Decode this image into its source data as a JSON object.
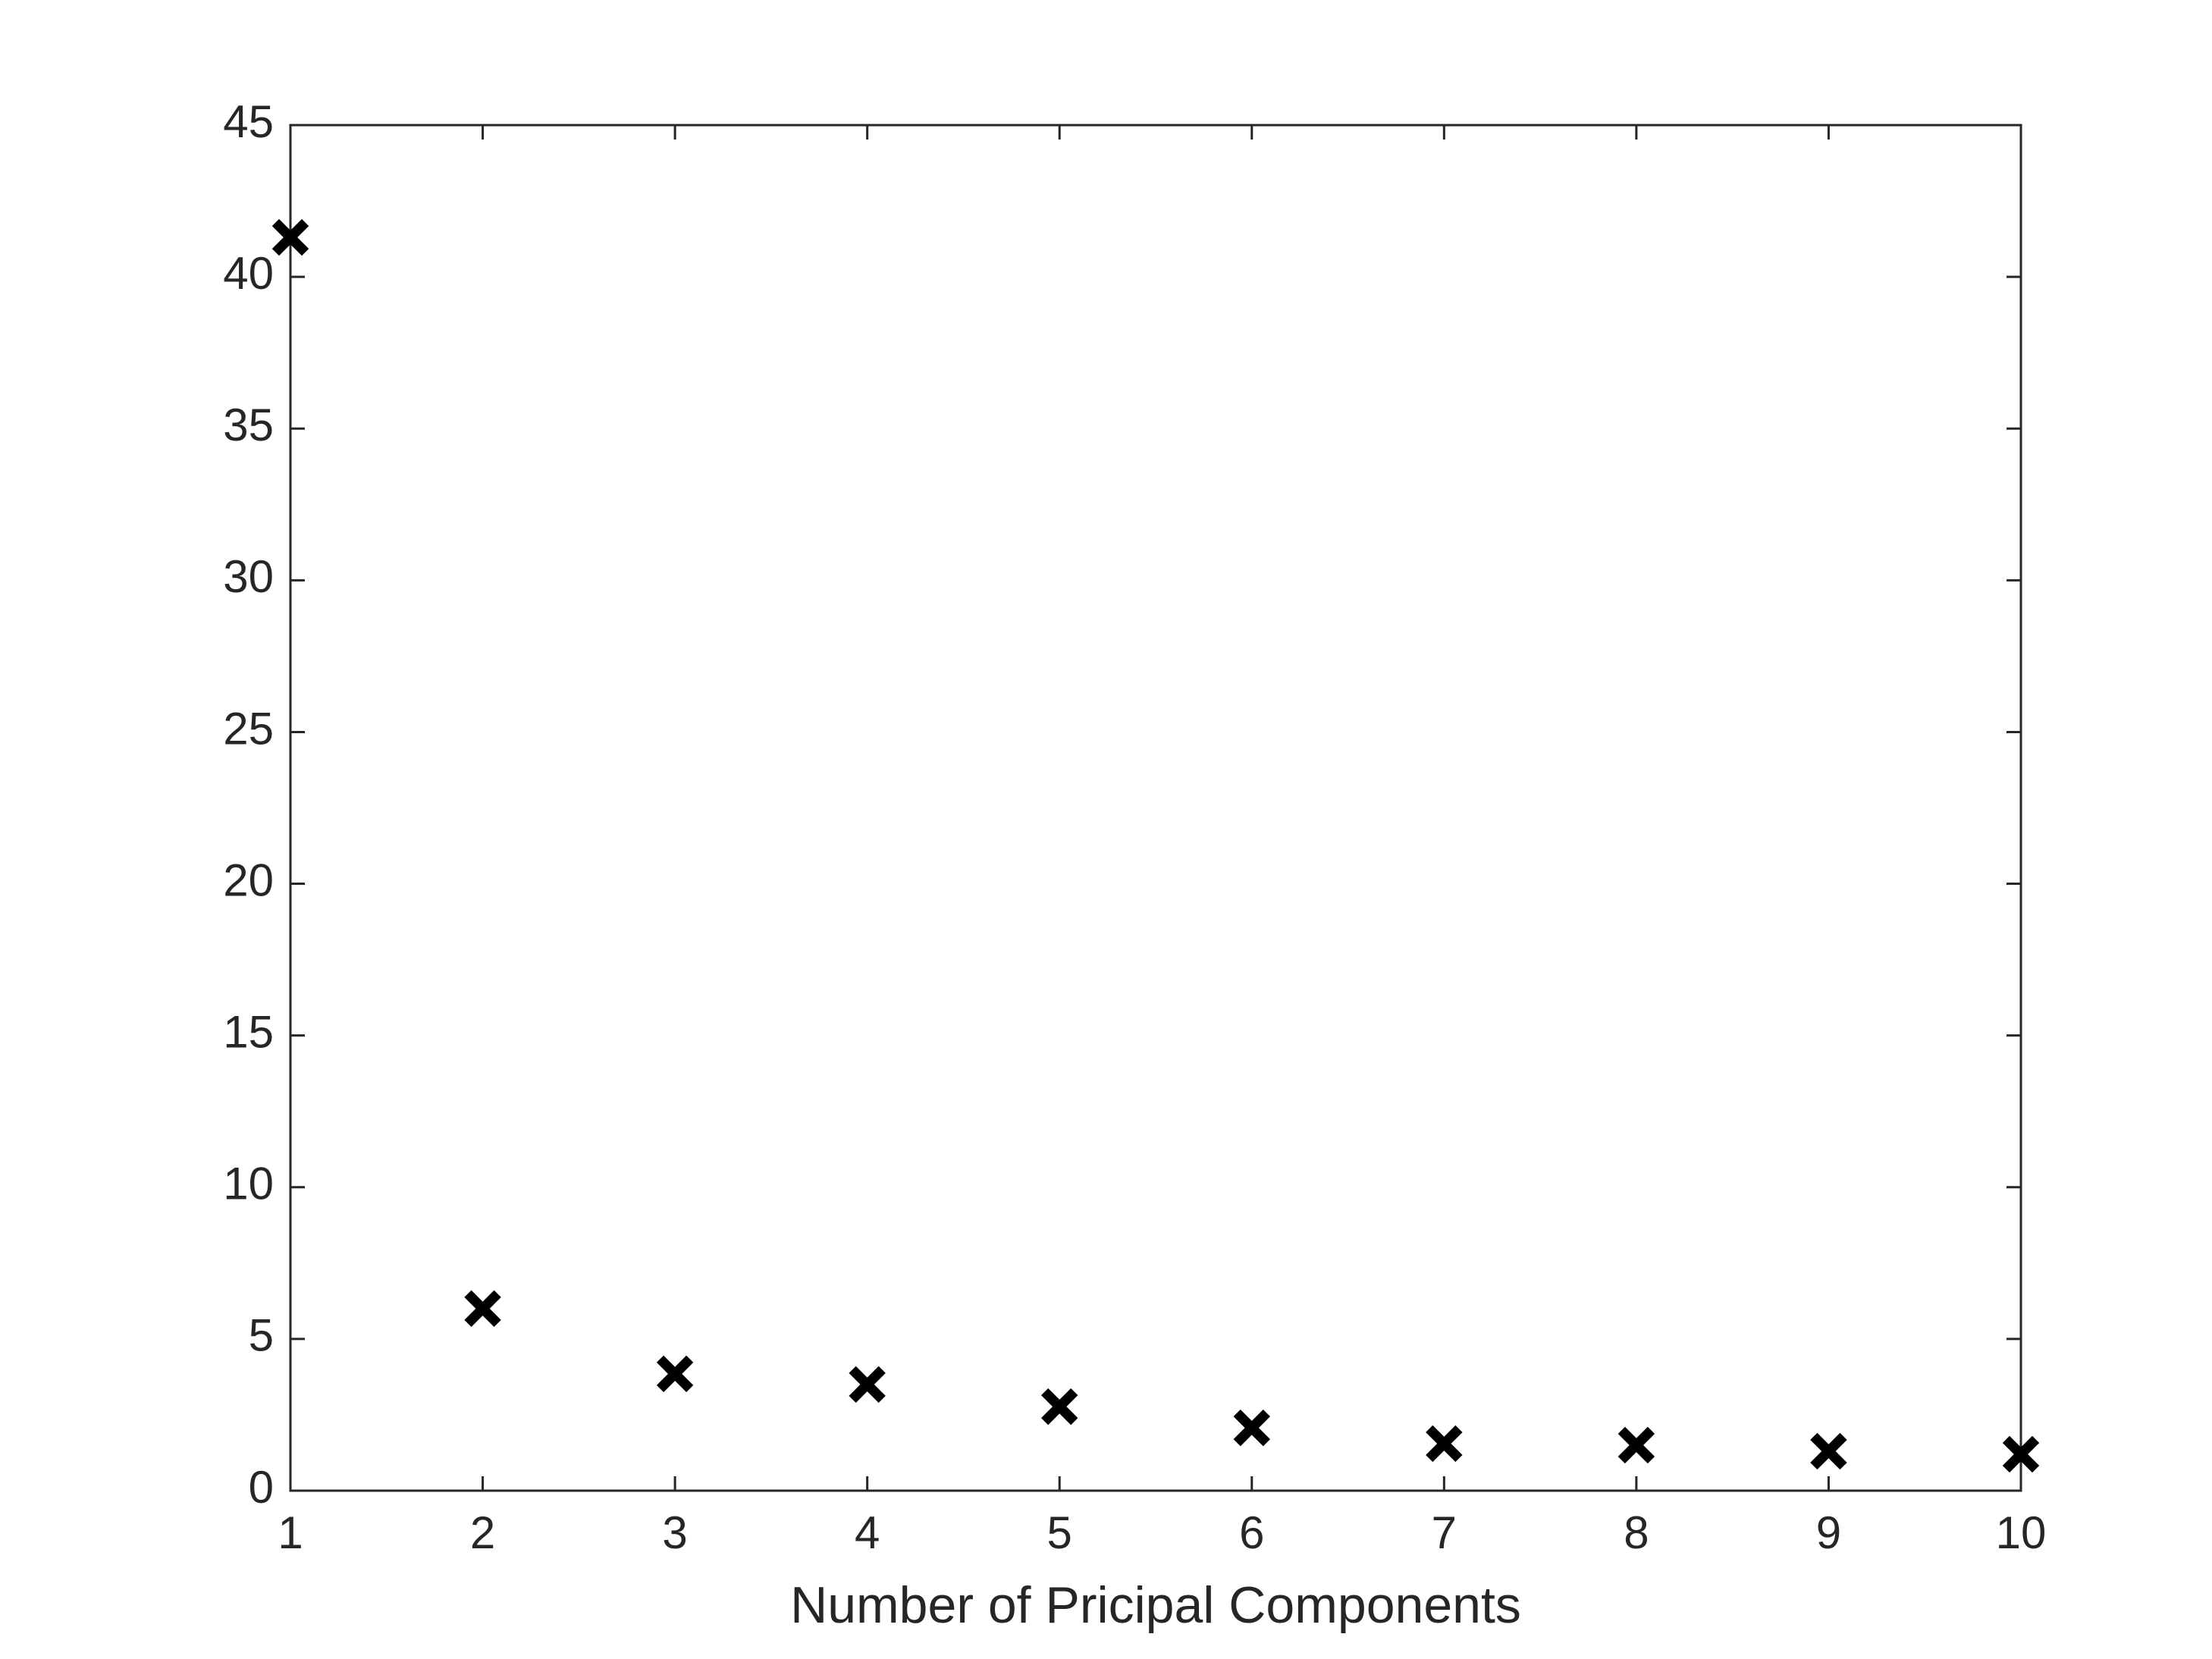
{
  "chart_data": {
    "type": "scatter",
    "x_label": "Number of Pricipal Components",
    "x": [
      1,
      2,
      3,
      4,
      5,
      6,
      7,
      8,
      9,
      10
    ],
    "values": [
      41.3,
      6.0,
      3.85,
      3.5,
      2.77,
      2.07,
      1.55,
      1.5,
      1.3,
      1.2
    ],
    "color": "#000000",
    "xlim": [
      1,
      10
    ],
    "xticks": [
      1,
      2,
      3,
      4,
      5,
      6,
      7,
      8,
      9,
      10
    ],
    "ylim": [
      0,
      45
    ],
    "yticks": [
      0,
      5,
      10,
      15,
      20,
      25,
      30,
      35,
      40,
      45
    ],
    "grid": false
  }
}
